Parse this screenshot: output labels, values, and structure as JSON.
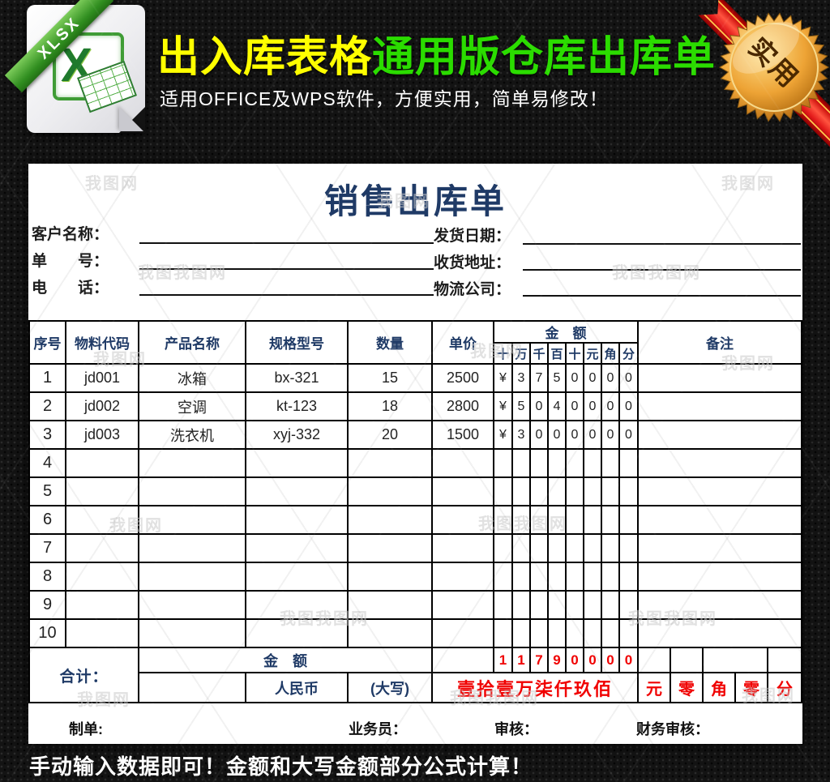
{
  "banner": {
    "file_type": "XLSX",
    "title_yellow": "出入库表格",
    "title_green": "通用版仓库出库单",
    "subtitle": "适用OFFICE及WPS软件，方便实用，简单易修改！",
    "medal_text": "实用"
  },
  "form": {
    "title": "销售出库单",
    "fields_left": [
      {
        "label": "客户名称："
      },
      {
        "label": "单　　号："
      },
      {
        "label": "电　　话："
      }
    ],
    "fields_right": [
      {
        "label": "发货日期："
      },
      {
        "label": "收货地址："
      },
      {
        "label": "物流公司："
      }
    ]
  },
  "table": {
    "header": {
      "seq": "序号",
      "code": "物料代码",
      "name": "产品名称",
      "spec": "规格型号",
      "qty": "数量",
      "price": "单价",
      "amount": "金　额",
      "remark": "备注",
      "amount_units": [
        "十",
        "万",
        "千",
        "百",
        "十",
        "元",
        "角",
        "分"
      ]
    },
    "rows": [
      {
        "seq": "1",
        "code": "jd001",
        "name": "冰箱",
        "spec": "bx-321",
        "qty": "15",
        "price": "2500",
        "a": [
          "¥",
          "3",
          "7",
          "5",
          "0",
          "0",
          "0",
          "0"
        ],
        "remark": ""
      },
      {
        "seq": "2",
        "code": "jd002",
        "name": "空调",
        "spec": "kt-123",
        "qty": "18",
        "price": "2800",
        "a": [
          "¥",
          "5",
          "0",
          "4",
          "0",
          "0",
          "0",
          "0"
        ],
        "remark": ""
      },
      {
        "seq": "3",
        "code": "jd003",
        "name": "洗衣机",
        "spec": "xyj-332",
        "qty": "20",
        "price": "1500",
        "a": [
          "¥",
          "3",
          "0",
          "0",
          "0",
          "0",
          "0",
          "0"
        ],
        "remark": ""
      },
      {
        "seq": "4",
        "code": "",
        "name": "",
        "spec": "",
        "qty": "",
        "price": "",
        "a": [
          "",
          "",
          "",
          "",
          "",
          "",
          "",
          ""
        ],
        "remark": ""
      },
      {
        "seq": "5",
        "code": "",
        "name": "",
        "spec": "",
        "qty": "",
        "price": "",
        "a": [
          "",
          "",
          "",
          "",
          "",
          "",
          "",
          ""
        ],
        "remark": ""
      },
      {
        "seq": "6",
        "code": "",
        "name": "",
        "spec": "",
        "qty": "",
        "price": "",
        "a": [
          "",
          "",
          "",
          "",
          "",
          "",
          "",
          ""
        ],
        "remark": ""
      },
      {
        "seq": "7",
        "code": "",
        "name": "",
        "spec": "",
        "qty": "",
        "price": "",
        "a": [
          "",
          "",
          "",
          "",
          "",
          "",
          "",
          ""
        ],
        "remark": ""
      },
      {
        "seq": "8",
        "code": "",
        "name": "",
        "spec": "",
        "qty": "",
        "price": "",
        "a": [
          "",
          "",
          "",
          "",
          "",
          "",
          "",
          ""
        ],
        "remark": ""
      },
      {
        "seq": "9",
        "code": "",
        "name": "",
        "spec": "",
        "qty": "",
        "price": "",
        "a": [
          "",
          "",
          "",
          "",
          "",
          "",
          "",
          ""
        ],
        "remark": ""
      },
      {
        "seq": "10",
        "code": "",
        "name": "",
        "spec": "",
        "qty": "",
        "price": "",
        "a": [
          "",
          "",
          "",
          "",
          "",
          "",
          "",
          ""
        ],
        "remark": ""
      }
    ],
    "total": {
      "label": "合计：",
      "amount_label": "金　额",
      "digits": [
        "1",
        "1",
        "7",
        "9",
        "0",
        "0",
        "0",
        "0"
      ],
      "currency": "人民币",
      "caps": "(大写)",
      "caps_value": "壹拾壹万柒仟玖佰",
      "units": [
        "元",
        "零",
        "角",
        "零",
        "分"
      ]
    }
  },
  "footer": {
    "maker": "制单:",
    "salesman": "业务员：",
    "checker": "审核：",
    "finance": "财务审核："
  },
  "bottom_note": "手动输入数据即可！金额和大写金额部分公式计算！",
  "watermark": {
    "short": "我图网",
    "long": "我图我图网"
  }
}
